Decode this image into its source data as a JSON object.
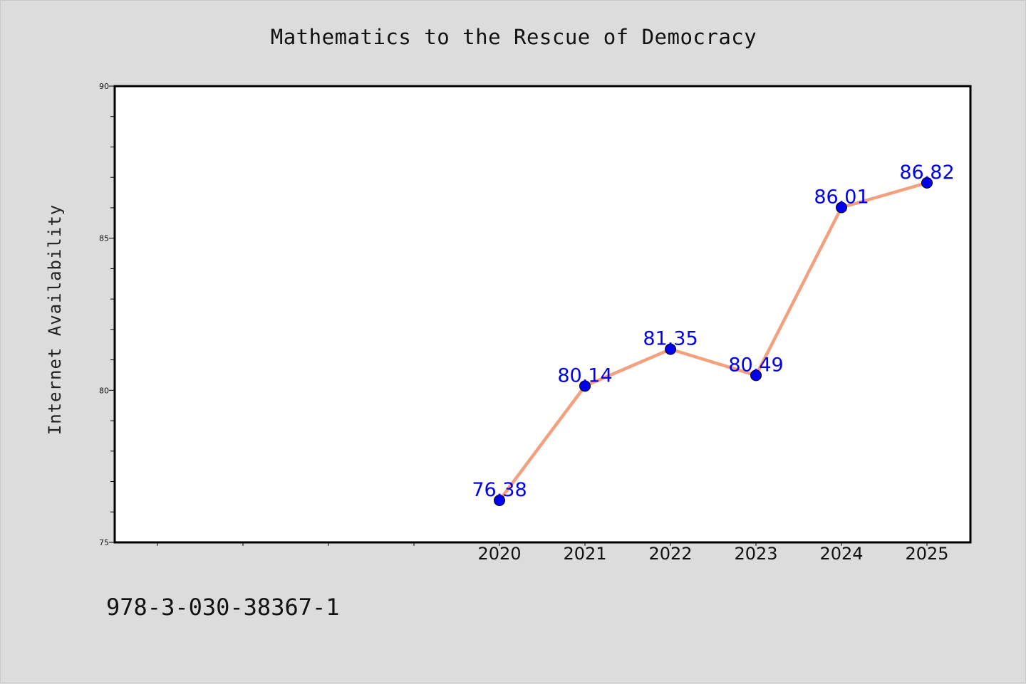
{
  "chart_data": {
    "type": "line",
    "title": "Mathematics to the Rescue of Democracy",
    "xlabel": "",
    "ylabel": "Internet Availability",
    "x": [
      "2020",
      "2021",
      "2022",
      "2023",
      "2024",
      "2025"
    ],
    "series": [
      {
        "values": [
          76.38,
          80.14,
          81.35,
          80.49,
          86.01,
          86.82
        ]
      }
    ],
    "data_labels": [
      "76.38",
      "80.14",
      "81.35",
      "80.49",
      "86.01",
      "86.82"
    ],
    "ylim": [
      75,
      90
    ],
    "yticks": [
      "75",
      "80",
      "85",
      "90"
    ],
    "grid": false,
    "legend": "none",
    "colors": {
      "line": "#f4a07f",
      "marker": "#0000ee",
      "data_label": "#0000ee",
      "plot_background": "#ffffff",
      "page_background": "#dcdcdc"
    }
  },
  "footer": {
    "isbn": "978-3-030-38367-1"
  }
}
